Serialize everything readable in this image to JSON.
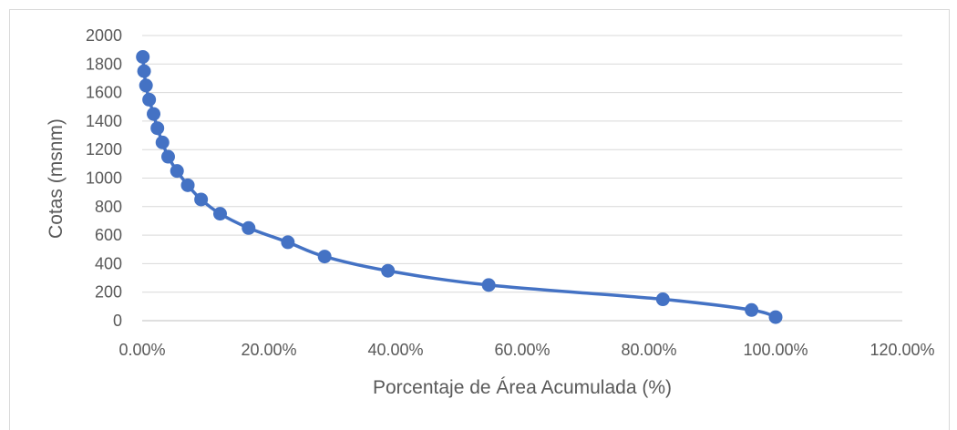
{
  "chart_data": {
    "type": "scatter",
    "title": "",
    "xlabel": "Porcentaje de Área Acumulada (%)",
    "ylabel": "Cotas (msnm)",
    "xlim": [
      0,
      120
    ],
    "ylim": [
      0,
      2000
    ],
    "x_ticks": [
      "0.00%",
      "20.00%",
      "40.00%",
      "60.00%",
      "80.00%",
      "100.00%",
      "120.00%"
    ],
    "y_ticks": [
      "0",
      "200",
      "400",
      "600",
      "800",
      "1000",
      "1200",
      "1400",
      "1600",
      "1800",
      "2000"
    ],
    "grid": true,
    "legend": "none",
    "series_color": "#4472c4",
    "line_style": "smoothed line with markers",
    "series": [
      {
        "points": [
          {
            "x": 0.1,
            "y": 1850
          },
          {
            "x": 0.3,
            "y": 1750
          },
          {
            "x": 0.6,
            "y": 1650
          },
          {
            "x": 1.1,
            "y": 1550
          },
          {
            "x": 1.8,
            "y": 1450
          },
          {
            "x": 2.4,
            "y": 1350
          },
          {
            "x": 3.2,
            "y": 1250
          },
          {
            "x": 4.1,
            "y": 1150
          },
          {
            "x": 5.5,
            "y": 1050
          },
          {
            "x": 7.2,
            "y": 950
          },
          {
            "x": 9.3,
            "y": 850
          },
          {
            "x": 12.3,
            "y": 750
          },
          {
            "x": 16.8,
            "y": 650
          },
          {
            "x": 23.0,
            "y": 550
          },
          {
            "x": 28.8,
            "y": 450
          },
          {
            "x": 38.8,
            "y": 350
          },
          {
            "x": 54.7,
            "y": 250
          },
          {
            "x": 82.2,
            "y": 150
          },
          {
            "x": 96.2,
            "y": 75
          },
          {
            "x": 100.0,
            "y": 25
          }
        ]
      }
    ]
  }
}
